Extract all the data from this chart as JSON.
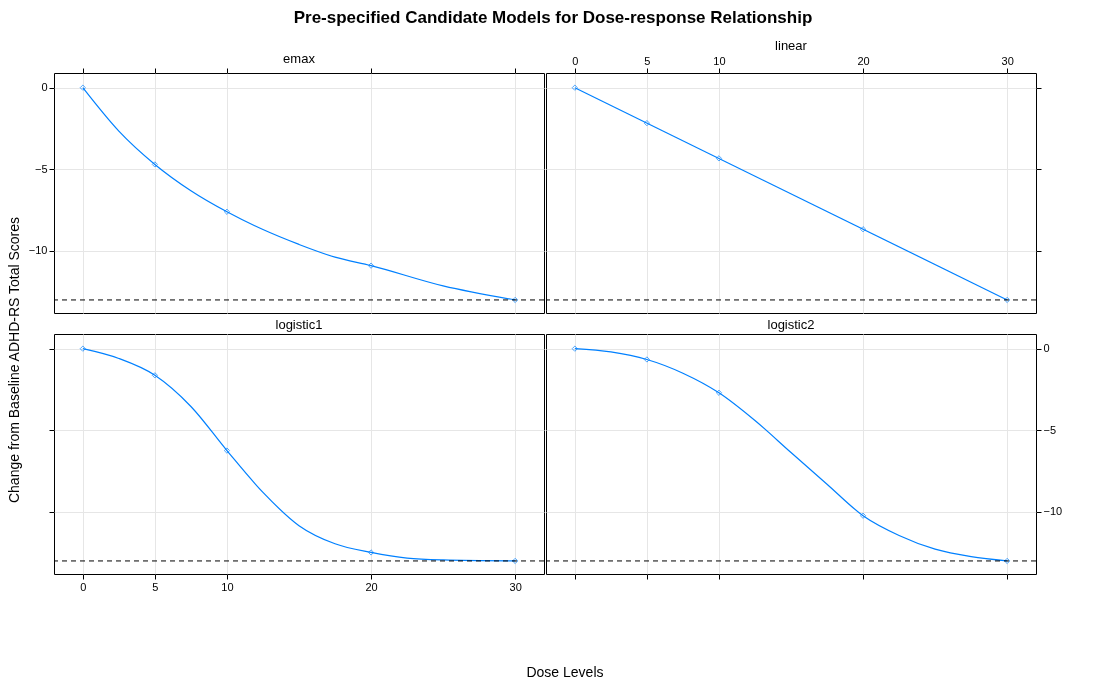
{
  "chart_data": [
    {
      "type": "line",
      "title": "emax",
      "ylabel": "Change from Baseline ADHD-RS Total Scores",
      "annotations": [
        "Pre-specified Candidate Models for Dose-response Relationship"
      ],
      "series": [
        {
          "type": "line",
          "color": "#0080ff",
          "marker": "none",
          "x": [
            0,
            2.5,
            5,
            7.5,
            10,
            12.5,
            15,
            17.5,
            20,
            25,
            30
          ],
          "values": [
            0,
            -2.66,
            -4.7,
            -6.31,
            -7.6,
            -8.69,
            -9.6,
            -10.38,
            -10.9,
            -12.14,
            -13
          ]
        },
        {
          "type": "scatter",
          "color": "#0080ff",
          "marker": "diamond",
          "x": [
            0,
            5,
            10,
            20,
            30
          ],
          "values": [
            0,
            -4.7,
            -7.6,
            -10.9,
            -13
          ]
        }
      ],
      "xlim": [
        -2,
        32
      ],
      "xticks": [
        0,
        5,
        10,
        20,
        30
      ],
      "ylim": [
        -13.8,
        0.9
      ],
      "yticks": [
        -10,
        -5,
        0
      ],
      "grid": true,
      "tick_labels": "y",
      "ref_lines": [
        {
          "axis": "y",
          "value": -13,
          "line_style": "dashed",
          "color": "#000000"
        }
      ]
    },
    {
      "type": "line",
      "title": "linear",
      "series": [
        {
          "type": "line",
          "color": "#0080ff",
          "marker": "none",
          "x": [
            0,
            30
          ],
          "values": [
            0,
            -13
          ]
        },
        {
          "type": "scatter",
          "color": "#0080ff",
          "marker": "diamond",
          "x": [
            0,
            5,
            10,
            20,
            30
          ],
          "values": [
            0,
            -2.17,
            -4.33,
            -8.67,
            -13
          ]
        }
      ],
      "xlim": [
        -2,
        32
      ],
      "xticks": [
        0,
        5,
        10,
        20,
        30
      ],
      "ylim": [
        -13.8,
        0.9
      ],
      "yticks": [
        -10,
        -5,
        0
      ],
      "grid": true,
      "tick_labels": "x",
      "ref_lines": [
        {
          "axis": "y",
          "value": -13,
          "line_style": "dashed",
          "color": "#000000"
        }
      ]
    },
    {
      "type": "line",
      "title": "logistic1",
      "xlabel": "Dose Levels",
      "series": [
        {
          "type": "line",
          "color": "#0080ff",
          "marker": "none",
          "x": [
            0,
            2.5,
            5,
            7.5,
            10,
            12.5,
            15,
            17.5,
            20,
            22.5,
            25,
            30
          ],
          "values": [
            0,
            -0.6,
            -1.63,
            -3.54,
            -6.24,
            -8.8,
            -10.84,
            -11.95,
            -12.48,
            -12.83,
            -12.94,
            -13
          ]
        },
        {
          "type": "scatter",
          "color": "#0080ff",
          "marker": "diamond",
          "x": [
            0,
            5,
            10,
            20,
            30
          ],
          "values": [
            0,
            -1.63,
            -6.24,
            -12.48,
            -13
          ]
        }
      ],
      "xlim": [
        -2,
        32
      ],
      "xticks": [
        0,
        5,
        10,
        20,
        30
      ],
      "ylim": [
        -13.8,
        0.9
      ],
      "yticks": [
        -10,
        -5,
        0
      ],
      "grid": true,
      "tick_labels": "x",
      "ref_lines": [
        {
          "axis": "y",
          "value": -13,
          "line_style": "dashed",
          "color": "#000000"
        }
      ]
    },
    {
      "type": "line",
      "title": "logistic2",
      "series": [
        {
          "type": "line",
          "color": "#0080ff",
          "marker": "none",
          "x": [
            0,
            2.5,
            5,
            7.5,
            10,
            12.5,
            15,
            17.5,
            20,
            22.5,
            25,
            27.5,
            30
          ],
          "values": [
            0,
            -0.2,
            -0.66,
            -1.5,
            -2.7,
            -4.4,
            -6.36,
            -8.3,
            -10.23,
            -11.44,
            -12.28,
            -12.74,
            -13
          ]
        },
        {
          "type": "scatter",
          "color": "#0080ff",
          "marker": "diamond",
          "x": [
            0,
            5,
            10,
            20,
            30
          ],
          "values": [
            0,
            -0.66,
            -2.7,
            -10.23,
            -13
          ]
        }
      ],
      "xlim": [
        -2,
        32
      ],
      "xticks": [
        0,
        5,
        10,
        20,
        30
      ],
      "ylim": [
        -13.8,
        0.9
      ],
      "yticks": [
        -10,
        -5,
        0
      ],
      "grid": true,
      "tick_labels": "y",
      "ref_lines": [
        {
          "axis": "y",
          "value": -13,
          "line_style": "dashed",
          "color": "#000000"
        }
      ]
    }
  ]
}
